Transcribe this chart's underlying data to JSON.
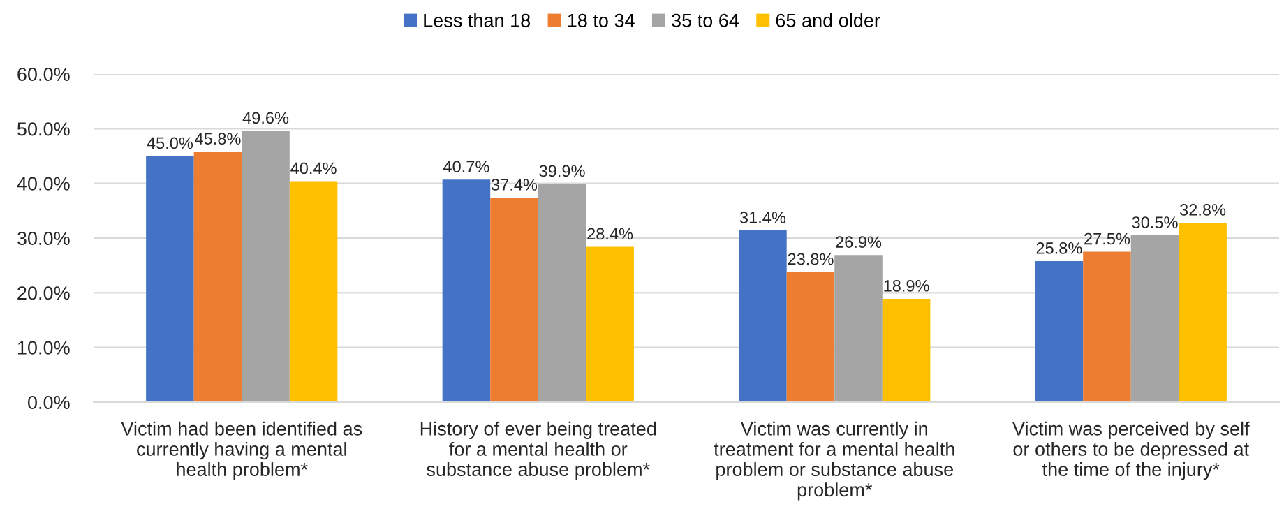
{
  "chart_data": {
    "type": "bar",
    "categories": [
      "Victim had been identified as\ncurrently having a mental\nhealth problem*",
      "History of ever being treated\nfor a mental health or\nsubstance abuse problem*",
      "Victim was currently in\ntreatment for a mental health\nproblem or substance abuse\nproblem*",
      "Victim was perceived by self\nor others to be depressed at\nthe time of the injury*"
    ],
    "series": [
      {
        "name": "Less than 18",
        "color": "#4472c4",
        "values": [
          45.0,
          40.7,
          31.4,
          25.8
        ],
        "value_labels": [
          "45.0%",
          "40.7%",
          "31.4%",
          "25.8%"
        ]
      },
      {
        "name": "18 to 34",
        "color": "#ed7d31",
        "values": [
          45.8,
          37.4,
          23.8,
          27.5
        ],
        "value_labels": [
          "45.8%",
          "37.4%",
          "23.8%",
          "27.5%"
        ]
      },
      {
        "name": "35 to 64",
        "color": "#a5a5a5",
        "values": [
          49.6,
          39.9,
          26.9,
          30.5
        ],
        "value_labels": [
          "49.6%",
          "39.9%",
          "26.9%",
          "30.5%"
        ]
      },
      {
        "name": "65 and older",
        "color": "#ffc000",
        "values": [
          40.4,
          28.4,
          18.9,
          32.8
        ],
        "value_labels": [
          "40.4%",
          "28.4%",
          "18.9%",
          "32.8%"
        ]
      }
    ],
    "ylim": [
      0,
      60
    ],
    "yticks": [
      {
        "value": 0,
        "label": "0.0%"
      },
      {
        "value": 10,
        "label": "10.0%"
      },
      {
        "value": 20,
        "label": "20.0%"
      },
      {
        "value": 30,
        "label": "30.0%"
      },
      {
        "value": 40,
        "label": "40.0%"
      },
      {
        "value": 50,
        "label": "50.0%"
      },
      {
        "value": 60,
        "label": "60.0%"
      }
    ],
    "grid": "y",
    "legend": "top"
  }
}
